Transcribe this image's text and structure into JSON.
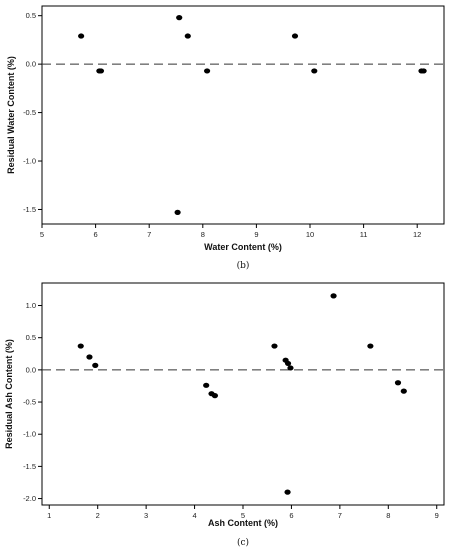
{
  "chart_data": [
    {
      "type": "scatter",
      "title": "",
      "xlabel": "Water Content (%)",
      "ylabel": "Residual Water Content (%)",
      "caption": "(b)",
      "xlim": [
        5,
        12.5
      ],
      "ylim": [
        -1.65,
        0.6
      ],
      "xticks": [
        5,
        6,
        7,
        8,
        9,
        10,
        11,
        12
      ],
      "yticks": [
        0.5,
        0.0,
        -0.5,
        -1.0,
        -1.5
      ],
      "ytick_labels": [
        "0.5",
        "0.0",
        "-0.5",
        "-1.0",
        "-1.5"
      ],
      "reference_line": 0,
      "x": [
        5.73,
        6.07,
        6.1,
        7.53,
        7.56,
        7.72,
        8.08,
        9.72,
        10.08,
        12.08,
        12.12
      ],
      "y": [
        0.29,
        -0.07,
        -0.07,
        -1.53,
        0.48,
        0.29,
        -0.07,
        0.29,
        -0.07,
        -0.07,
        -0.07
      ]
    },
    {
      "type": "scatter",
      "title": "",
      "xlabel": "Ash Content (%)",
      "ylabel": "Residual Ash Content (%)",
      "caption": "(c)",
      "xlim": [
        0.85,
        9.15
      ],
      "ylim": [
        -2.1,
        1.35
      ],
      "xticks": [
        1,
        2,
        3,
        4,
        5,
        6,
        7,
        8,
        9
      ],
      "yticks": [
        1.0,
        0.5,
        0.0,
        -0.5,
        -1.0,
        -1.5,
        -2.0
      ],
      "ytick_labels": [
        "1.0",
        "0.5",
        "0.0",
        "-0.5",
        "-1.0",
        "-1.5",
        "-2.0"
      ],
      "reference_line": 0,
      "x": [
        1.65,
        1.83,
        1.95,
        4.24,
        4.35,
        4.42,
        5.65,
        5.88,
        5.93,
        5.98,
        5.92,
        6.87,
        7.63,
        8.2,
        8.32
      ],
      "y": [
        0.37,
        0.2,
        0.07,
        -0.24,
        -0.37,
        -0.4,
        0.37,
        0.15,
        0.1,
        0.03,
        -1.9,
        1.15,
        0.37,
        -0.2,
        -0.33
      ]
    }
  ]
}
